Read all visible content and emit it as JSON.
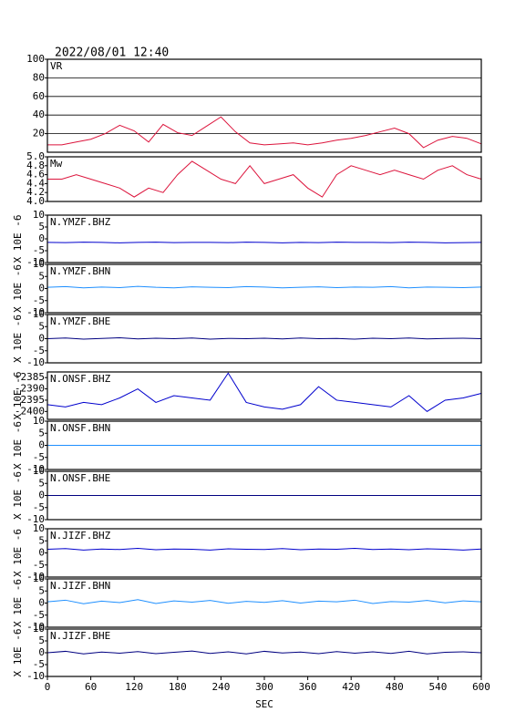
{
  "title": "2022/08/01 12:40",
  "chart_data": [
    {
      "type": "line",
      "label": "VR",
      "color": "#dc143c",
      "grid": true,
      "xlim": [
        0,
        600
      ],
      "ylim": [
        0,
        100
      ],
      "yticks": [
        20,
        40,
        60,
        80,
        100
      ],
      "x": [
        0,
        20,
        40,
        60,
        80,
        100,
        120,
        140,
        160,
        180,
        200,
        220,
        240,
        260,
        280,
        300,
        320,
        340,
        360,
        380,
        400,
        420,
        440,
        460,
        480,
        500,
        520,
        540,
        560,
        580,
        600
      ],
      "values": [
        8,
        8,
        11,
        14,
        20,
        29,
        23,
        11,
        30,
        21,
        18,
        28,
        38,
        22,
        10,
        8,
        9,
        10,
        8,
        10,
        13,
        15,
        18,
        22,
        26,
        20,
        5,
        13,
        17,
        15,
        9
      ]
    },
    {
      "type": "line",
      "label": "Mw",
      "color": "#dc143c",
      "grid": false,
      "xlim": [
        0,
        600
      ],
      "ylim": [
        4,
        5
      ],
      "yticks": [
        {
          "value": 4,
          "label": "4.0"
        },
        4.2,
        4.4,
        4.6,
        4.8,
        {
          "value": 5,
          "label": "5.0"
        }
      ],
      "x": [
        0,
        20,
        40,
        60,
        80,
        100,
        120,
        140,
        160,
        180,
        200,
        220,
        240,
        260,
        280,
        300,
        320,
        340,
        360,
        380,
        400,
        420,
        440,
        460,
        480,
        500,
        520,
        540,
        560,
        580,
        600
      ],
      "values": [
        4.5,
        4.5,
        4.6,
        4.5,
        4.4,
        4.3,
        4.1,
        4.3,
        4.2,
        4.6,
        4.9,
        4.7,
        4.5,
        4.4,
        4.8,
        4.4,
        4.5,
        4.6,
        4.3,
        4.1,
        4.6,
        4.8,
        4.7,
        4.6,
        4.7,
        4.6,
        4.5,
        4.7,
        4.8,
        4.6,
        4.5
      ]
    },
    {
      "type": "line",
      "label": "N.YMZF.BHZ",
      "ylabel": "X 10E -6",
      "color": "#0000cd",
      "xlim": [
        0,
        600
      ],
      "ylim": [
        -10,
        10
      ],
      "yticks": [
        -10,
        -5,
        0,
        5,
        10
      ],
      "x": [
        0,
        25,
        50,
        75,
        100,
        125,
        150,
        175,
        200,
        225,
        250,
        275,
        300,
        325,
        350,
        375,
        400,
        425,
        450,
        475,
        500,
        525,
        550,
        575,
        600
      ],
      "values": [
        -1.5,
        -1.6,
        -1.4,
        -1.5,
        -1.7,
        -1.5,
        -1.4,
        -1.6,
        -1.5,
        -1.5,
        -1.6,
        -1.4,
        -1.5,
        -1.7,
        -1.5,
        -1.6,
        -1.4,
        -1.5,
        -1.5,
        -1.6,
        -1.4,
        -1.5,
        -1.7,
        -1.6,
        -1.5
      ]
    },
    {
      "type": "line",
      "label": "N.YMZF.BHN",
      "ylabel": "X 10E -6",
      "color": "#1e8fff",
      "xlim": [
        0,
        600
      ],
      "ylim": [
        -10,
        10
      ],
      "yticks": [
        -10,
        -5,
        0,
        5,
        10
      ],
      "x": [
        0,
        25,
        50,
        75,
        100,
        125,
        150,
        175,
        200,
        225,
        250,
        275,
        300,
        325,
        350,
        375,
        400,
        425,
        450,
        475,
        500,
        525,
        550,
        575,
        600
      ],
      "values": [
        0.5,
        0.8,
        0.3,
        0.6,
        0.4,
        0.9,
        0.5,
        0.3,
        0.7,
        0.5,
        0.4,
        0.8,
        0.6,
        0.3,
        0.5,
        0.7,
        0.4,
        0.6,
        0.5,
        0.8,
        0.3,
        0.6,
        0.5,
        0.4,
        0.6
      ]
    },
    {
      "type": "line",
      "label": "N.YMZF.BHE",
      "ylabel": "X 10E -6",
      "color": "#000080",
      "xlim": [
        0,
        600
      ],
      "ylim": [
        -10,
        10
      ],
      "yticks": [
        -10,
        -5,
        0,
        5,
        10
      ],
      "x": [
        0,
        25,
        50,
        75,
        100,
        125,
        150,
        175,
        200,
        225,
        250,
        275,
        300,
        325,
        350,
        375,
        400,
        425,
        450,
        475,
        500,
        525,
        550,
        575,
        600
      ],
      "values": [
        0,
        0.3,
        -0.2,
        0.1,
        0.4,
        -0.1,
        0.2,
        0,
        0.3,
        -0.2,
        0.1,
        0,
        0.2,
        -0.1,
        0.3,
        0,
        0.1,
        -0.2,
        0.2,
        0,
        0.3,
        -0.1,
        0.1,
        0.2,
        0
      ]
    },
    {
      "type": "line",
      "label": "N.ONSF.BHZ",
      "ylabel": "X 10E -6",
      "color": "#0000cd",
      "xlim": [
        0,
        600
      ],
      "ylim": [
        -2403.5,
        -2382.5
      ],
      "yticks": [
        -2400,
        -2395,
        -2390,
        -2385
      ],
      "x": [
        0,
        25,
        50,
        75,
        100,
        125,
        150,
        175,
        200,
        225,
        250,
        275,
        300,
        325,
        350,
        375,
        400,
        425,
        450,
        475,
        500,
        525,
        550,
        575,
        600
      ],
      "values": [
        -2397,
        -2398,
        -2396,
        -2397,
        -2394,
        -2390,
        -2396,
        -2393,
        -2394,
        -2395,
        -2383,
        -2396,
        -2398,
        -2399,
        -2397,
        -2389,
        -2395,
        -2396,
        -2397,
        -2398,
        -2393,
        -2400,
        -2395,
        -2394,
        -2392
      ]
    },
    {
      "type": "line",
      "label": "N.ONSF.BHN",
      "ylabel": "X 10E -6",
      "color": "#1e8fff",
      "xlim": [
        0,
        600
      ],
      "ylim": [
        -10,
        10
      ],
      "yticks": [
        -10,
        -5,
        0,
        5,
        10
      ],
      "x": [
        0,
        25,
        50,
        75,
        100,
        125,
        150,
        175,
        200,
        225,
        250,
        275,
        300,
        325,
        350,
        375,
        400,
        425,
        450,
        475,
        500,
        525,
        550,
        575,
        600
      ],
      "values": [
        0,
        0,
        0,
        0,
        0,
        0,
        0,
        0,
        0,
        0,
        0,
        0,
        0,
        0,
        0,
        0,
        0,
        0,
        0,
        0,
        0,
        0,
        0,
        0,
        0
      ]
    },
    {
      "type": "line",
      "label": "N.ONSF.BHE",
      "ylabel": "X 10E -6",
      "color": "#000080",
      "xlim": [
        0,
        600
      ],
      "ylim": [
        -10,
        10
      ],
      "yticks": [
        -10,
        -5,
        0,
        5,
        10
      ],
      "x": [
        0,
        25,
        50,
        75,
        100,
        125,
        150,
        175,
        200,
        225,
        250,
        275,
        300,
        325,
        350,
        375,
        400,
        425,
        450,
        475,
        500,
        525,
        550,
        575,
        600
      ],
      "values": [
        0,
        0,
        0,
        0,
        0,
        0,
        0,
        0,
        0,
        0,
        0,
        0,
        0,
        0,
        0,
        0,
        0,
        0,
        0,
        0,
        0,
        0,
        0,
        0,
        0
      ]
    },
    {
      "type": "line",
      "label": "N.JIZF.BHZ",
      "ylabel": "X 10E -6",
      "color": "#0000cd",
      "xlim": [
        0,
        600
      ],
      "ylim": [
        -10,
        10
      ],
      "yticks": [
        -10,
        -5,
        0,
        5,
        10
      ],
      "x": [
        0,
        25,
        50,
        75,
        100,
        125,
        150,
        175,
        200,
        225,
        250,
        275,
        300,
        325,
        350,
        375,
        400,
        425,
        450,
        475,
        500,
        525,
        550,
        575,
        600
      ],
      "values": [
        1.5,
        1.8,
        1.2,
        1.6,
        1.4,
        1.9,
        1.3,
        1.6,
        1.5,
        1.2,
        1.7,
        1.5,
        1.4,
        1.8,
        1.3,
        1.6,
        1.5,
        1.9,
        1.4,
        1.6,
        1.3,
        1.7,
        1.5,
        1.2,
        1.6
      ]
    },
    {
      "type": "line",
      "label": "N.JIZF.BHN",
      "ylabel": "X 10E -6",
      "color": "#1e8fff",
      "xlim": [
        0,
        600
      ],
      "ylim": [
        -10,
        10
      ],
      "yticks": [
        -10,
        -5,
        0,
        5,
        10
      ],
      "x": [
        0,
        25,
        50,
        75,
        100,
        125,
        150,
        175,
        200,
        225,
        250,
        275,
        300,
        325,
        350,
        375,
        400,
        425,
        450,
        475,
        500,
        525,
        550,
        575,
        600
      ],
      "values": [
        0.5,
        1.2,
        -0.3,
        0.8,
        0.2,
        1.4,
        -0.2,
        0.9,
        0.4,
        1.1,
        -0.1,
        0.7,
        0.3,
        1.0,
        0,
        0.8,
        0.5,
        1.2,
        -0.2,
        0.6,
        0.4,
        1.1,
        0.1,
        0.9,
        0.5
      ]
    },
    {
      "type": "line",
      "label": "N.JIZF.BHE",
      "ylabel": "X 10E -6",
      "color": "#000080",
      "xlim": [
        0,
        600
      ],
      "ylim": [
        -10,
        10
      ],
      "yticks": [
        -10,
        -5,
        0,
        5,
        10
      ],
      "x_label": "SEC",
      "xticks": [
        0,
        60,
        120,
        180,
        240,
        300,
        360,
        420,
        480,
        540,
        600
      ],
      "x": [
        0,
        25,
        50,
        75,
        100,
        125,
        150,
        175,
        200,
        225,
        250,
        275,
        300,
        325,
        350,
        375,
        400,
        425,
        450,
        475,
        500,
        525,
        550,
        575,
        600
      ],
      "values": [
        0,
        0.6,
        -0.5,
        0.3,
        -0.2,
        0.5,
        -0.4,
        0.2,
        0.7,
        -0.3,
        0.4,
        -0.5,
        0.6,
        -0.1,
        0.3,
        -0.4,
        0.5,
        -0.2,
        0.4,
        -0.3,
        0.6,
        -0.5,
        0.2,
        0.4,
        0
      ]
    }
  ]
}
